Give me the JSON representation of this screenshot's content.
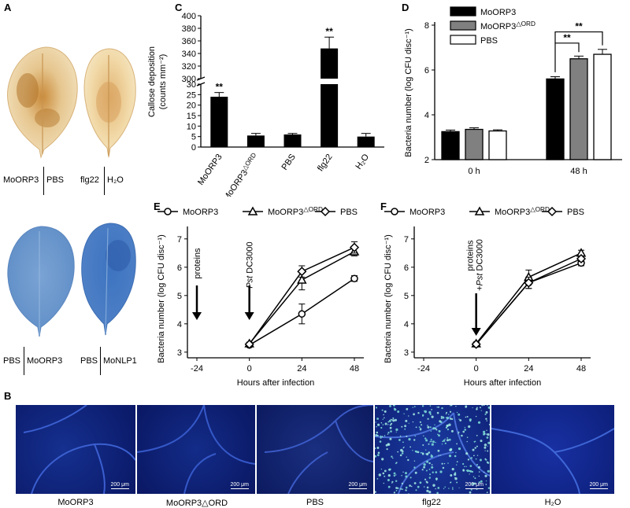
{
  "panel_labels": {
    "A": "A",
    "B": "B",
    "C": "C",
    "D": "D",
    "E": "E",
    "F": "F"
  },
  "panelA": {
    "top_labels": {
      "left1": "MoORP3",
      "left2": "PBS",
      "right1": "flg22",
      "right2": "H₂O"
    },
    "bottom_labels": {
      "left1": "PBS",
      "left2": "MoORP3",
      "right1": "PBS",
      "right2": "MoNLP1"
    }
  },
  "panelB": {
    "labels": [
      "MoORP3",
      "MoORP3△ORD",
      "PBS",
      "flg22",
      "H₂O"
    ],
    "scale_text": "200 μm"
  },
  "colors": {
    "black": "#000000",
    "grey": "#808080",
    "white": "#ffffff",
    "micro_bg": "#0b1a6e"
  },
  "chart_data": [
    {
      "panel": "C",
      "type": "bar",
      "ylabel": "Callose deposition (counts mm⁻²)",
      "categories": [
        "MoORP3",
        "MoORP3△ORD",
        "PBS",
        "flg22",
        "H₂O"
      ],
      "values": [
        24,
        5.5,
        6,
        348,
        5
      ],
      "errors": [
        2,
        1,
        0.5,
        18,
        1.5
      ],
      "significance": [
        "**",
        "",
        "",
        "**",
        ""
      ],
      "yticks_lower": [
        "0",
        "5",
        "10",
        "15",
        "20",
        "25",
        "30"
      ],
      "yticks_upper": [
        "300",
        "320",
        "340",
        "360",
        "380",
        "400"
      ],
      "ylim_lower": [
        0,
        30
      ],
      "ylim_upper": [
        300,
        400
      ]
    },
    {
      "panel": "D",
      "type": "bar",
      "ylabel": "Bacteria number (log CFU disc⁻¹)",
      "categories": [
        "0 h",
        "48 h"
      ],
      "series": [
        {
          "name": "MoORP3",
          "values": [
            3.25,
            5.6
          ],
          "errors": [
            0.07,
            0.1
          ]
        },
        {
          "name": "MoORP3△ORD",
          "values": [
            3.35,
            6.5
          ],
          "errors": [
            0.07,
            0.12
          ]
        },
        {
          "name": "PBS",
          "values": [
            3.28,
            6.7
          ],
          "errors": [
            0.05,
            0.22
          ]
        }
      ],
      "yticks": [
        "2",
        "4",
        "6",
        "8"
      ],
      "ylim": [
        2,
        8
      ],
      "significance": [
        "**",
        "**"
      ]
    },
    {
      "panel": "E",
      "type": "line",
      "ylabel": "Bacteria number (log CFU disc⁻¹)",
      "xlabel": "Hours after infection",
      "xticks": [
        "-24",
        "0",
        "24",
        "48"
      ],
      "yticks": [
        "3",
        "4",
        "5",
        "6",
        "7"
      ],
      "ylim": [
        2.8,
        7.3
      ],
      "x": [
        0,
        24,
        48
      ],
      "series": [
        {
          "name": "MoORP3",
          "values": [
            3.25,
            4.35,
            5.6
          ],
          "errors": [
            0.05,
            0.35,
            0.1
          ]
        },
        {
          "name": "MoORP3△ORD",
          "values": [
            3.3,
            5.55,
            6.55
          ],
          "errors": [
            0.05,
            0.35,
            0.15
          ]
        },
        {
          "name": "PBS",
          "values": [
            3.28,
            5.85,
            6.7
          ],
          "errors": [
            0.05,
            0.2,
            0.2
          ]
        }
      ],
      "annotations": [
        "proteins",
        "Pst DC3000"
      ]
    },
    {
      "panel": "F",
      "type": "line",
      "ylabel": "Bacteria number (log CFU disc⁻¹)",
      "xlabel": "Hours after infection",
      "xticks": [
        "-24",
        "0",
        "24",
        "48"
      ],
      "yticks": [
        "3",
        "4",
        "5",
        "6",
        "7"
      ],
      "ylim": [
        2.8,
        7.3
      ],
      "x": [
        0,
        24,
        48
      ],
      "series": [
        {
          "name": "MoORP3",
          "values": [
            3.28,
            5.45,
            6.15
          ],
          "errors": [
            0.05,
            0.2,
            0.1
          ]
        },
        {
          "name": "MoORP3△ORD",
          "values": [
            3.3,
            5.65,
            6.5
          ],
          "errors": [
            0.05,
            0.25,
            0.1
          ]
        },
        {
          "name": "PBS",
          "values": [
            3.28,
            5.45,
            6.3
          ],
          "errors": [
            0.05,
            0.2,
            0.1
          ]
        }
      ],
      "annotations": [
        "proteins",
        "+Pst DC3000"
      ]
    }
  ]
}
